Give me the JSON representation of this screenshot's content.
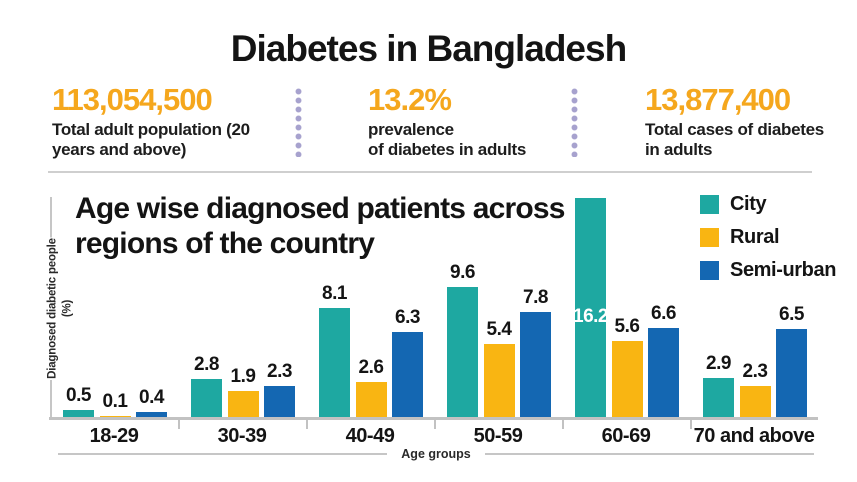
{
  "page": {
    "title": "Diabetes in Bangladesh"
  },
  "stats": {
    "accent_color": "#f5a71d",
    "divider_dot_color": "#a7a2ce",
    "items": [
      {
        "value": "113,054,500",
        "label_line1": "Total adult population (20",
        "label_line2": "years and above)"
      },
      {
        "value": "13.2%",
        "label_line1": "prevalence",
        "label_line2": "of diabetes in adults"
      },
      {
        "value": "13,877,400",
        "label_line1": "Total cases of diabetes",
        "label_line2": "in adults"
      }
    ]
  },
  "chart": {
    "title_line1": "Age wise diagnosed patients across",
    "title_line2": "regions of the country"
  },
  "chart_data": {
    "type": "bar",
    "title": "Age wise diagnosed patients across regions of the country",
    "xlabel": "Age groups",
    "ylabel": "Diagnosed diabetic people (%)",
    "categories": [
      "18-29",
      "30-39",
      "40-49",
      "50-59",
      "60-69",
      "70 and above"
    ],
    "series": [
      {
        "name": "City",
        "color": "#1ea8a1",
        "values": [
          0.5,
          2.8,
          8.1,
          9.6,
          16.2,
          2.9
        ]
      },
      {
        "name": "Rural",
        "color": "#f9b512",
        "values": [
          0.1,
          1.9,
          2.6,
          5.4,
          5.6,
          2.3
        ]
      },
      {
        "name": "Semi-urban",
        "color": "#1467b2",
        "values": [
          0.4,
          2.3,
          6.3,
          7.8,
          6.6,
          6.5
        ]
      }
    ],
    "ylim": [
      0,
      17.2
    ],
    "grid": false,
    "legend_position": "top-right",
    "value_labels": true,
    "special_label": {
      "series": "City",
      "category": "60-69",
      "position": "inside",
      "color": "#ffffff"
    }
  }
}
